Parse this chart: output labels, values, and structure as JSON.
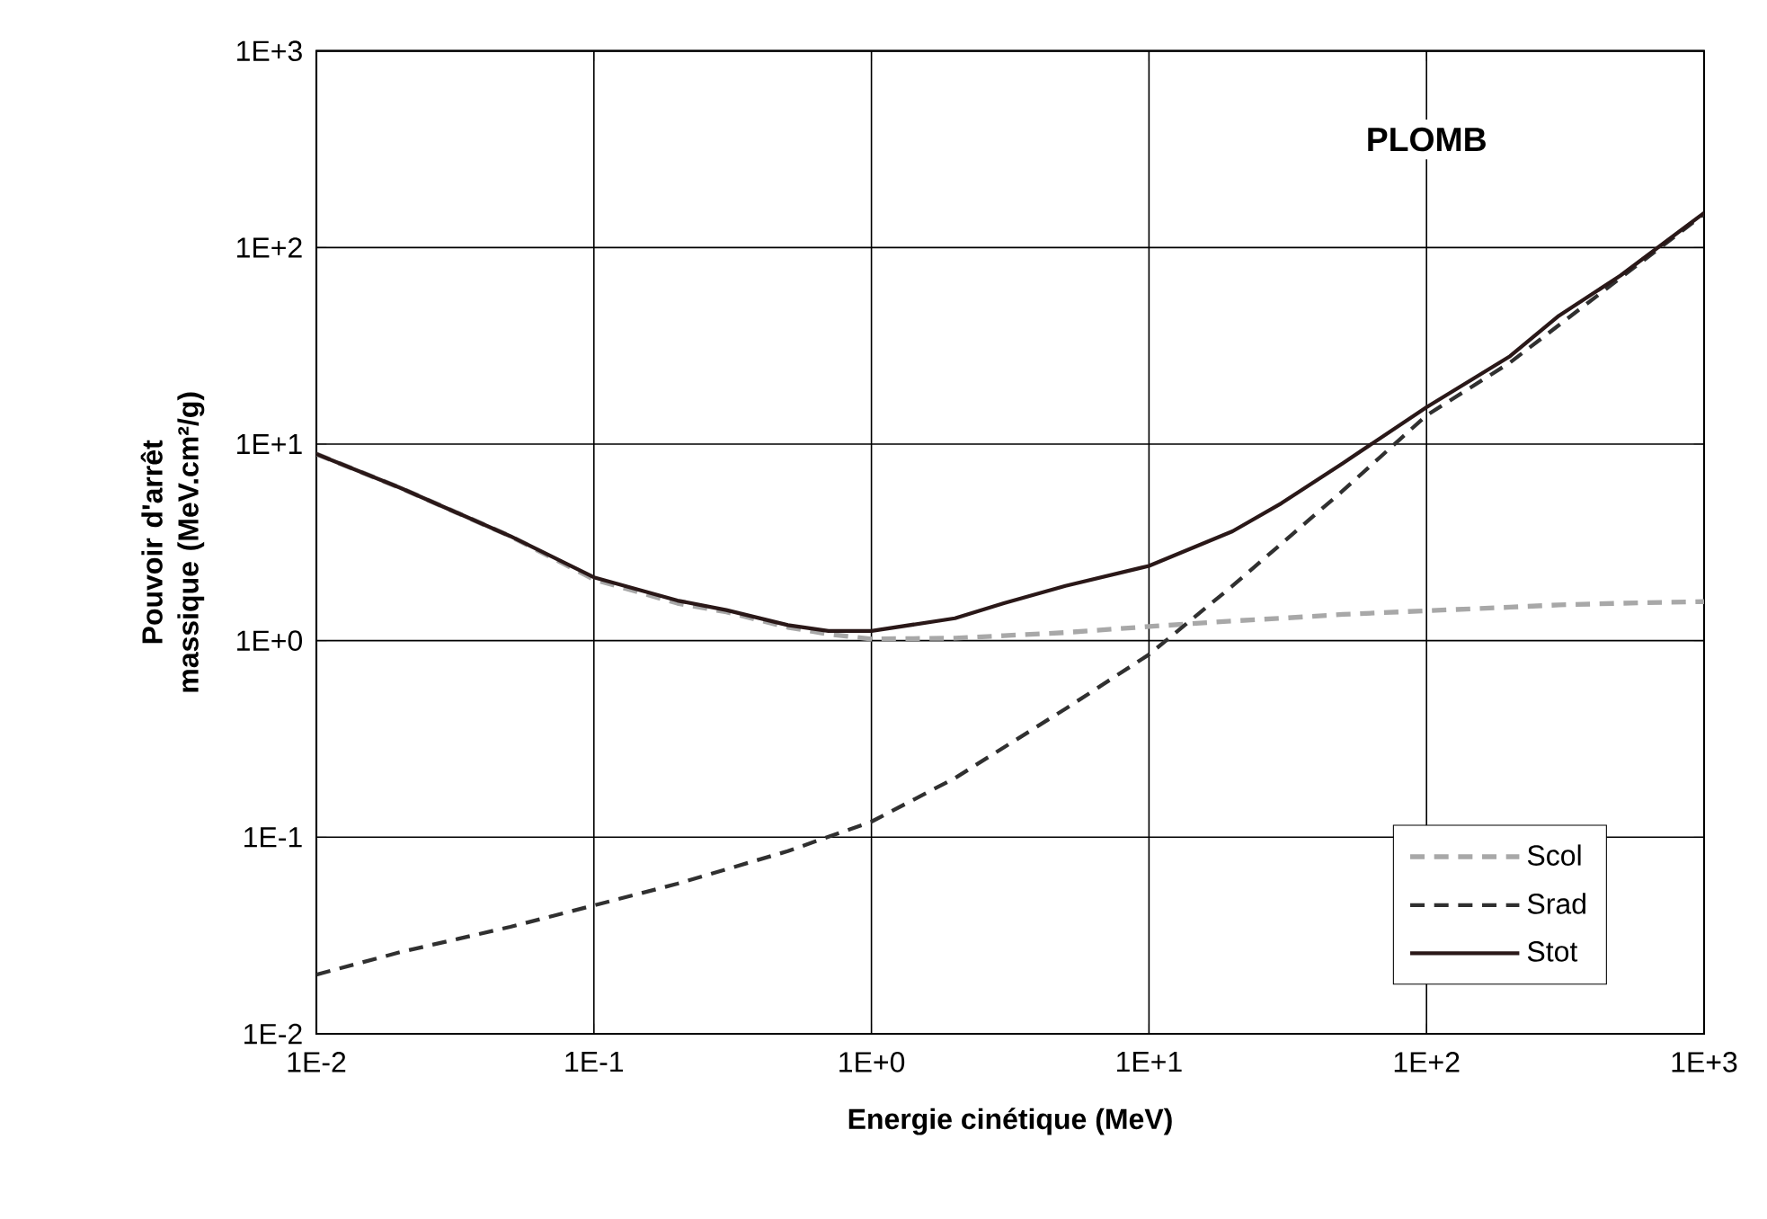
{
  "chart_data": {
    "type": "line",
    "title": "PLOMB",
    "xlabel": "Energie cinétique (MeV)",
    "ylabel": "Pouvoir d'arrêt massique (MeV.cm²/g)",
    "log": "xy",
    "grid": true,
    "legend": "bottom right",
    "xlim": [
      0.01,
      1000
    ],
    "ylim": [
      0.01,
      1000
    ],
    "xticks": [
      {
        "value": 0.01,
        "label": "1E-2"
      },
      {
        "value": 0.1,
        "label": "1E-1"
      },
      {
        "value": 1,
        "label": "1E+0"
      },
      {
        "value": 10,
        "label": "1E+1"
      },
      {
        "value": 100,
        "label": "1E+2"
      },
      {
        "value": 1000,
        "label": "1E+3"
      }
    ],
    "yticks": [
      {
        "value": 0.01,
        "label": "1E-2"
      },
      {
        "value": 0.1,
        "label": "1E-1"
      },
      {
        "value": 1,
        "label": "1E+0"
      },
      {
        "value": 10,
        "label": "1E+1"
      },
      {
        "value": 100,
        "label": "1E+2"
      },
      {
        "value": 1000,
        "label": "1E+3"
      }
    ],
    "series": [
      {
        "name": "Scol",
        "color": "#a8a8a8",
        "line_style": "dashed",
        "x": [
          0.01,
          0.02,
          0.05,
          0.1,
          0.2,
          0.3,
          0.5,
          0.7,
          1,
          2,
          3,
          5,
          10,
          20,
          30,
          50,
          100,
          200,
          300,
          500,
          1000
        ],
        "values": [
          8.9,
          6.0,
          3.4,
          2.05,
          1.55,
          1.4,
          1.17,
          1.08,
          1.02,
          1.03,
          1.06,
          1.1,
          1.18,
          1.26,
          1.3,
          1.36,
          1.42,
          1.48,
          1.52,
          1.55,
          1.58
        ]
      },
      {
        "name": "Srad",
        "color": "#303030",
        "line_style": "dashed",
        "x": [
          0.01,
          0.02,
          0.05,
          0.1,
          0.2,
          0.5,
          1,
          2,
          5,
          10,
          20,
          50,
          100,
          200,
          500,
          1000
        ],
        "values": [
          0.02,
          0.026,
          0.035,
          0.045,
          0.058,
          0.085,
          0.12,
          0.2,
          0.45,
          0.85,
          1.9,
          5.8,
          14,
          26,
          70,
          148
        ]
      },
      {
        "name": "Stot",
        "color": "#2a1818",
        "line_style": "solid",
        "x": [
          0.01,
          0.02,
          0.05,
          0.1,
          0.2,
          0.3,
          0.5,
          0.7,
          1,
          2,
          3,
          5,
          10,
          20,
          30,
          50,
          100,
          200,
          300,
          500,
          1000
        ],
        "values": [
          8.9,
          6.0,
          3.4,
          2.1,
          1.6,
          1.43,
          1.2,
          1.12,
          1.12,
          1.3,
          1.55,
          1.9,
          2.4,
          3.6,
          5.0,
          8.0,
          15.4,
          28,
          45,
          72,
          150
        ]
      }
    ]
  }
}
